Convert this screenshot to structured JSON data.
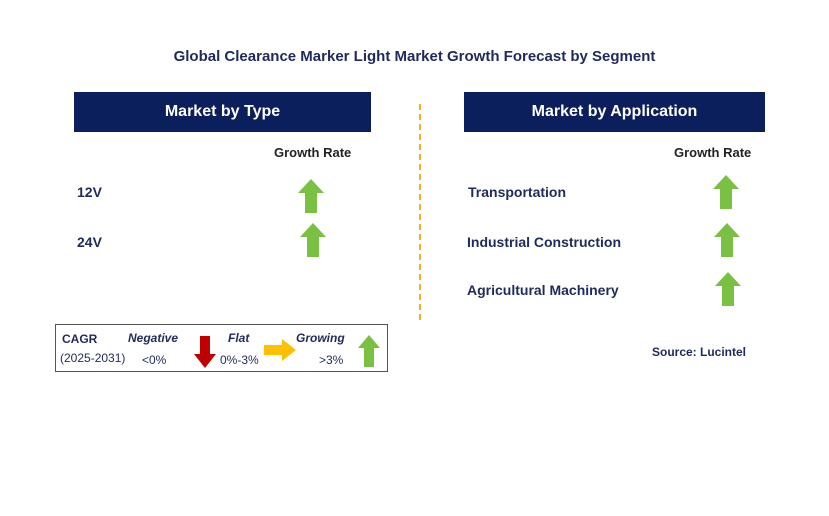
{
  "title": "Global Clearance Marker Light Market Growth Forecast by Segment",
  "left_panel": {
    "header": "Market by Type",
    "column_header": "Growth Rate",
    "rows": [
      {
        "label": "12V",
        "trend": "growing"
      },
      {
        "label": "24V",
        "trend": "growing"
      }
    ]
  },
  "right_panel": {
    "header": "Market by Application",
    "column_header": "Growth Rate",
    "rows": [
      {
        "label": "Transportation",
        "trend": "growing"
      },
      {
        "label": "Industrial Construction",
        "trend": "growing"
      },
      {
        "label": "Agricultural Machinery",
        "trend": "growing"
      }
    ]
  },
  "legend": {
    "cagr_label": "CAGR",
    "period": "(2025-2031)",
    "negative_label": "Negative",
    "negative_value": "<0%",
    "flat_label": "Flat",
    "flat_value": "0%-3%",
    "growing_label": "Growing",
    "growing_value": ">3%"
  },
  "source": "Source: Lucintel",
  "colors": {
    "header_bg": "#0b1f5c",
    "growing_arrow": "#7ac143",
    "negative_arrow": "#c00000",
    "flat_arrow": "#ffc000",
    "divider": "#f0b323"
  }
}
